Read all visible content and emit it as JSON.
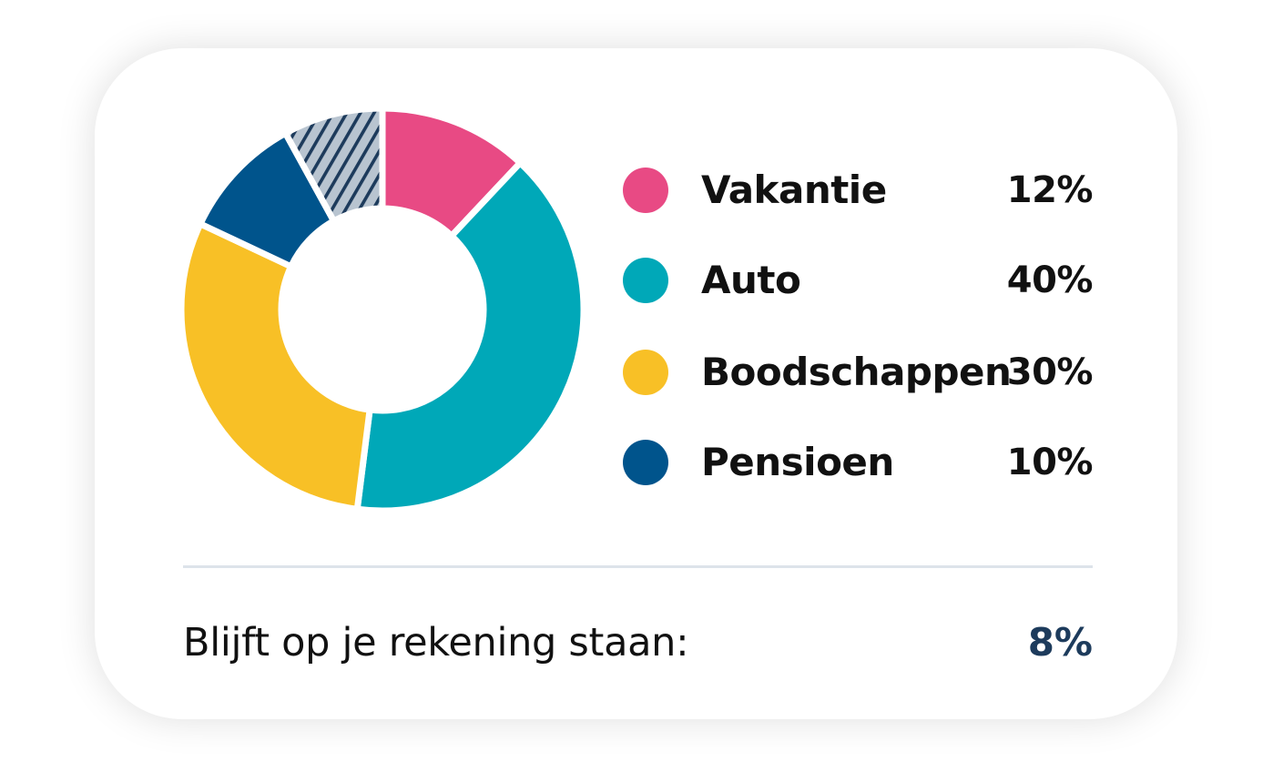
{
  "chart_data": {
    "type": "pie",
    "style": "donut",
    "categories": [
      "Vakantie",
      "Auto",
      "Boodschappen",
      "Pensioen",
      "Blijft op je rekening staan"
    ],
    "values": [
      12,
      40,
      30,
      10,
      8
    ],
    "value_labels": [
      "12%",
      "40%",
      "30%",
      "10%",
      "8%"
    ],
    "colors": [
      "#e84a84",
      "#00a8b8",
      "#f8c026",
      "#00548c",
      "hatched #b4c0cc/#1d3b5c"
    ],
    "legend": [
      {
        "label": "Vakantie",
        "value": "12%",
        "color": "#e84a84"
      },
      {
        "label": "Auto",
        "value": "40%",
        "color": "#00a8b8"
      },
      {
        "label": "Boodschappen",
        "value": "30%",
        "color": "#f8c026"
      },
      {
        "label": "Pensioen",
        "value": "10%",
        "color": "#00548c"
      }
    ],
    "legend_placement": "right",
    "remainder": {
      "label": "Blijft op je rekening staan:",
      "value": "8%",
      "pattern": "hatched"
    }
  }
}
